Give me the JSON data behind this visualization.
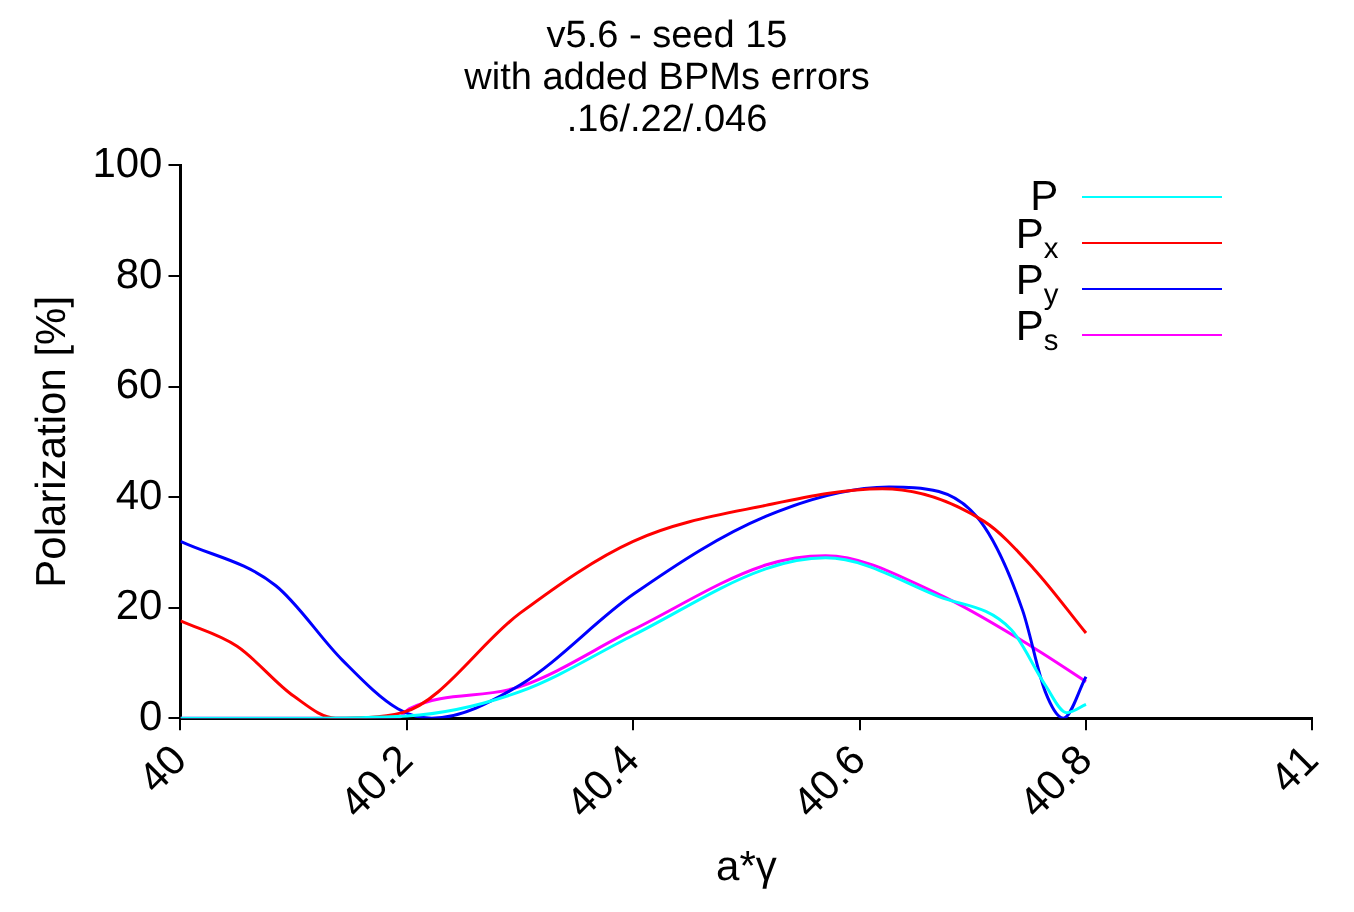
{
  "chart_data": {
    "type": "line",
    "title": "v5.6 - seed 15\nwith added BPMs errors\n.16/.22/.046",
    "xlabel": "a*γ",
    "ylabel": "Polarization [%]",
    "xlim": [
      40,
      41
    ],
    "xticks": [
      40,
      40.2,
      40.4,
      40.6,
      40.8,
      41
    ],
    "ylim": [
      0,
      100
    ],
    "yticks": [
      0,
      20,
      40,
      60,
      80,
      100
    ],
    "grid": false,
    "legend": "top right",
    "marker": "none",
    "line_style": "solid",
    "series": [
      {
        "name": "P",
        "color": "#00ffff",
        "x": [
          40,
          40.1,
          40.2,
          40.3,
          40.4,
          40.517,
          40.57,
          40.67,
          40.734,
          40.764,
          40.783,
          40.8
        ],
        "values": [
          0,
          0,
          0.4,
          4.8,
          15,
          27,
          29,
          22,
          16,
          6,
          1,
          2.5
        ]
      },
      {
        "name": "P$_{x}$",
        "color": "#ff0000",
        "x": [
          40,
          40.05,
          40.1,
          40.137,
          40.196,
          40.3,
          40.4,
          40.517,
          40.62,
          40.71,
          40.754,
          40.8
        ],
        "values": [
          17.6,
          13,
          4,
          0,
          1,
          19,
          32,
          38.5,
          41.5,
          35.6,
          27,
          15.4
        ]
      },
      {
        "name": "P$_{y}$",
        "color": "#0000ff",
        "x": [
          40,
          40.084,
          40.143,
          40.192,
          40.222,
          40.3,
          40.4,
          40.517,
          40.626,
          40.67,
          40.71,
          40.744,
          40.764,
          40.78,
          40.8
        ],
        "values": [
          32,
          24,
          10.5,
          1.7,
          0,
          6,
          22.4,
          36.5,
          41.8,
          41,
          34.7,
          19.5,
          4.8,
          0,
          7.5
        ]
      },
      {
        "name": "P$_{s}$",
        "color": "#ff00ff",
        "x": [
          40,
          40.1,
          40.192,
          40.202,
          40.3,
          40.4,
          40.517,
          40.57,
          40.67,
          40.754,
          40.8
        ],
        "values": [
          0,
          0,
          0,
          1.7,
          5.7,
          16,
          27.7,
          29.4,
          22.4,
          12.7,
          6.6
        ]
      }
    ]
  }
}
